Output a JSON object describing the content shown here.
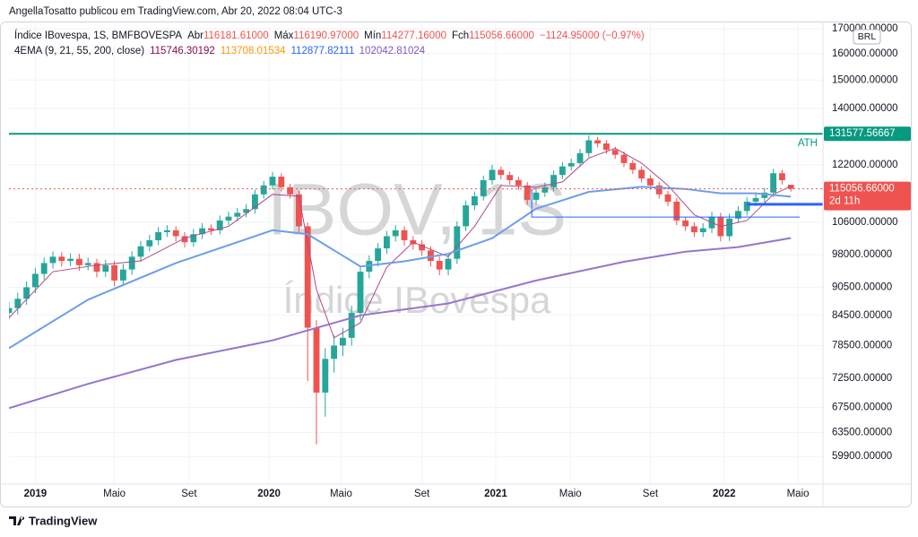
{
  "header": {
    "publisher": "AngellaTosatto publicou em TradingView.com, Abr 20, 2022 08:04 UTC-3"
  },
  "chart_data": {
    "type": "candlestick",
    "symbol": "Índice IBovespa, 1S, BMFBOVESPA",
    "ohlc_legend": [
      {
        "name": "Abr",
        "value": {
          "value": 116181.61,
          "label": "116181.61000"
        }
      },
      {
        "name": "Máx",
        "value": {
          "value": 116190.97,
          "label": "116190.97000"
        }
      },
      {
        "name": "Mín",
        "value": {
          "value": 114277.16,
          "label": "114277.16000"
        }
      },
      {
        "name": "Fch",
        "value": {
          "value": 115056.66,
          "label": "115056.66000"
        }
      }
    ],
    "change": "−1124.95000 (−0.97%)",
    "indicator": {
      "name": "4EMA (9, 21, 55, 200, close)",
      "values": [
        {
          "value": 115746.30192,
          "color": "#880e4f"
        },
        {
          "value": 113708.01534,
          "color": "#ff9800"
        },
        {
          "value": 112877.82111,
          "color": "#2962ff"
        },
        {
          "value": 102042.81024,
          "color": "#7e57c2"
        }
      ]
    },
    "watermark": {
      "ticker": "IBOV, 1S",
      "description": "Índice IBovespa"
    },
    "currency": "BRL",
    "up_color": "#26a69a",
    "down_color": "#ef5350",
    "open": [
      85000,
      86000,
      88000,
      90500,
      93500,
      96000,
      97500,
      96500,
      97000,
      95500,
      96000,
      94000,
      95500,
      92000,
      94500,
      97500,
      100000,
      101500,
      103500,
      104000,
      102500,
      101000,
      103000,
      104500,
      104000,
      106500,
      107500,
      108500,
      109500,
      113500,
      116000,
      118500,
      115500,
      113500,
      105000,
      82000,
      70000,
      76000,
      78500,
      80000,
      85000,
      94000,
      96500,
      99500,
      102500,
      104000,
      101500,
      100500,
      99000,
      96500,
      94500,
      97000,
      105000,
      110500,
      113000,
      117500,
      120500,
      119000,
      117500,
      116000,
      112000,
      114000,
      115500,
      119000,
      121500,
      122500,
      125500,
      129500,
      128500,
      126500,
      125000,
      122500,
      120500,
      118000,
      116000,
      113500,
      111500,
      106500,
      105000,
      103500,
      104500,
      107500,
      102500,
      107000,
      109000,
      111500,
      112500,
      114000,
      119500,
      116181.61
    ],
    "high": [
      87300,
      89300,
      91800,
      94800,
      97300,
      98800,
      98600,
      98300,
      98200,
      97300,
      97000,
      96800,
      96500,
      95800,
      98800,
      101300,
      102800,
      104800,
      105300,
      105000,
      103500,
      104300,
      105800,
      105500,
      107800,
      108800,
      109800,
      110800,
      114800,
      117300,
      119900,
      119500,
      116500,
      114500,
      106000,
      83500,
      78000,
      80500,
      82000,
      86500,
      95300,
      97800,
      100800,
      103800,
      105300,
      105000,
      102500,
      101500,
      100000,
      97500,
      98300,
      106300,
      111800,
      114300,
      118800,
      122000,
      121500,
      120000,
      118500,
      117000,
      115300,
      116800,
      120300,
      122800,
      123800,
      126800,
      131000,
      130600,
      129500,
      127500,
      126000,
      123500,
      121500,
      119000,
      117000,
      114500,
      112500,
      107500,
      106000,
      105800,
      108800,
      108500,
      108300,
      110300,
      112800,
      113800,
      115300,
      120800,
      120500,
      116190.97
    ],
    "low": [
      83700,
      84700,
      86700,
      89200,
      92200,
      94700,
      95200,
      95300,
      94200,
      94300,
      92700,
      92800,
      90700,
      90900,
      93300,
      96300,
      98800,
      100300,
      102300,
      101200,
      99700,
      99900,
      101800,
      102800,
      102900,
      105300,
      106300,
      107300,
      108300,
      112300,
      114800,
      114300,
      112300,
      103500,
      72000,
      61700,
      66000,
      73500,
      76500,
      78500,
      83500,
      92500,
      95200,
      98200,
      101200,
      100200,
      99200,
      97700,
      95200,
      93200,
      93200,
      95800,
      103800,
      109200,
      111800,
      116200,
      117700,
      116200,
      114700,
      110700,
      110800,
      112800,
      114300,
      117800,
      120300,
      121300,
      124300,
      127300,
      125300,
      123800,
      121300,
      119300,
      116800,
      114800,
      112300,
      110300,
      105300,
      103800,
      102300,
      102300,
      103300,
      101200,
      101300,
      105800,
      107800,
      110300,
      111300,
      112800,
      116300,
      114277.16
    ],
    "close": [
      86000,
      88000,
      90500,
      93500,
      96000,
      97500,
      96500,
      97000,
      95500,
      96000,
      94000,
      95500,
      92000,
      94500,
      97500,
      100000,
      101500,
      103500,
      104000,
      102500,
      101000,
      103000,
      104500,
      104000,
      106500,
      107500,
      108500,
      109500,
      113500,
      116000,
      118500,
      115500,
      113500,
      105000,
      82000,
      70000,
      76000,
      78500,
      80000,
      85000,
      94000,
      96500,
      99500,
      102500,
      104000,
      101500,
      100500,
      99000,
      96500,
      94500,
      97000,
      105000,
      110500,
      113000,
      117500,
      120500,
      119000,
      117500,
      116000,
      112000,
      114000,
      115500,
      119000,
      121500,
      122500,
      125500,
      129500,
      128500,
      126500,
      125000,
      122500,
      120500,
      118000,
      116000,
      113500,
      111500,
      106500,
      105000,
      103500,
      104500,
      107500,
      102500,
      107000,
      109000,
      111500,
      112500,
      114000,
      119500,
      117500,
      115056.66
    ],
    "lines": [
      {
        "color": "#b0488a",
        "x": [
          0,
          5,
          10,
          15,
          20,
          25,
          30,
          33,
          35,
          37,
          40,
          43,
          46,
          50,
          53,
          56,
          60,
          63,
          66,
          69,
          72,
          75,
          78,
          81,
          84,
          87,
          89
        ],
        "values": [
          84000,
          94000,
          95500,
          96500,
          102000,
          105000,
          113500,
          113000,
          90000,
          80000,
          83000,
          95000,
          101000,
          97500,
          105000,
          116000,
          115500,
          117000,
          124000,
          127000,
          122500,
          116000,
          108000,
          105000,
          106500,
          113500,
          115746.30192
        ]
      },
      {
        "color": "#6d9eeb",
        "x": [
          0,
          9,
          19,
          30,
          34,
          40,
          45,
          50,
          55,
          60,
          66,
          72,
          77,
          81,
          85,
          89
        ],
        "values": [
          78000,
          87800,
          96000,
          104000,
          103000,
          95200,
          96400,
          98200,
          102000,
          109600,
          114200,
          115600,
          115000,
          113800,
          113800,
          112877.82111
        ]
      },
      {
        "color": "#9575cd",
        "x": [
          0,
          9,
          19,
          30,
          40,
          50,
          60,
          70,
          77,
          83,
          89
        ],
        "values": [
          67400,
          71500,
          75800,
          79500,
          84500,
          87000,
          92000,
          96300,
          98700,
          99800,
          102042.81024
        ]
      }
    ],
    "ath_line": {
      "value": 131577.56667,
      "label": "ATH",
      "color": "#089981"
    },
    "price_line": {
      "value": {
        "value": 115056.66,
        "label": "115056.66000"
      },
      "countdown": "2d 11h",
      "color": "#ef5350"
    },
    "drawings": [
      {
        "color": "#2962ff",
        "x": [
          59.5,
          59.5,
          90
        ],
        "values": [
          115000,
          107400,
          107400
        ]
      },
      {
        "color": "#2962ff",
        "x": [
          84,
          93
        ],
        "values": [
          110800,
          110800
        ]
      }
    ],
    "log_scale": true,
    "xlim": [
      0,
      92.65
    ],
    "ylim": [
      56000,
      173000
    ],
    "xticks": [
      {
        "value": 3,
        "label": "2019"
      },
      {
        "value": 12,
        "label": "Maio"
      },
      {
        "value": 20.5,
        "label": "Set"
      },
      {
        "value": 29.6,
        "label": "2020"
      },
      {
        "value": 37.8,
        "label": "Maio"
      },
      {
        "value": 47,
        "label": "Set"
      },
      {
        "value": 55.4,
        "label": "2021"
      },
      {
        "value": 63.9,
        "label": "Maio"
      },
      {
        "value": 73,
        "label": "Set"
      },
      {
        "value": 81.4,
        "label": "2022"
      },
      {
        "value": 89.8,
        "label": "Maio"
      }
    ],
    "yticks": [
      {
        "value": 170000,
        "label": "170000.00000"
      },
      {
        "value": 160000,
        "label": "160000.00000"
      },
      {
        "value": 150000,
        "label": "150000.00000"
      },
      {
        "value": 140000,
        "label": "140000.00000"
      },
      {
        "value": 122000,
        "label": "122000.00000"
      },
      {
        "value": 106000,
        "label": "106000.00000"
      },
      {
        "value": 98000,
        "label": "98000.00000"
      },
      {
        "value": 90500,
        "label": "90500.00000"
      },
      {
        "value": 84500,
        "label": "84500.00000"
      },
      {
        "value": 78500,
        "label": "78500.00000"
      },
      {
        "value": 72500,
        "label": "72500.00000"
      },
      {
        "value": 67500,
        "label": "67500.00000"
      },
      {
        "value": 63500,
        "label": "63500.00000"
      },
      {
        "value": 59900,
        "label": "59900.00000"
      }
    ],
    "grid": true
  },
  "footer": {
    "brand": "TradingView"
  }
}
